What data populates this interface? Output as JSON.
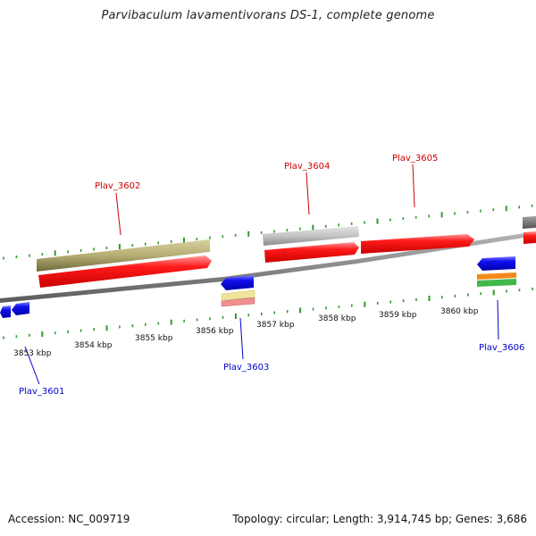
{
  "title": "Parvibaculum lavamentivorans DS-1, complete genome",
  "footer": {
    "accession": "Accession: NC_009719",
    "summary": "Topology: circular; Length: 3,914,745 bp; Genes: 3,686"
  },
  "colors": {
    "backbone": "#8a8a8a",
    "dots": "#2e9a2e",
    "label_forward": "#cc0000",
    "label_reverse": "#0000cc",
    "gene_forward": "#ff0000",
    "gene_reverse": "#0000ee",
    "olive": "#b5ad72",
    "grey": "#bdbdbd",
    "dark_grey": "#777777",
    "yellow": "#efe49a",
    "pink": "#ef8f8f",
    "orange": "#f28a1a",
    "green": "#41b84a"
  },
  "kbp_labels": [
    "3853 kbp",
    "3854 kbp",
    "3855 kbp",
    "3856 kbp",
    "3857 kbp",
    "3858 kbp",
    "3859 kbp",
    "3860 kbp"
  ],
  "gene_labels": {
    "plav_3601": "Plav_3601",
    "plav_3602": "Plav_3602",
    "plav_3603": "Plav_3603",
    "plav_3604": "Plav_3604",
    "plav_3605": "Plav_3605",
    "plav_3606": "Plav_3606"
  }
}
